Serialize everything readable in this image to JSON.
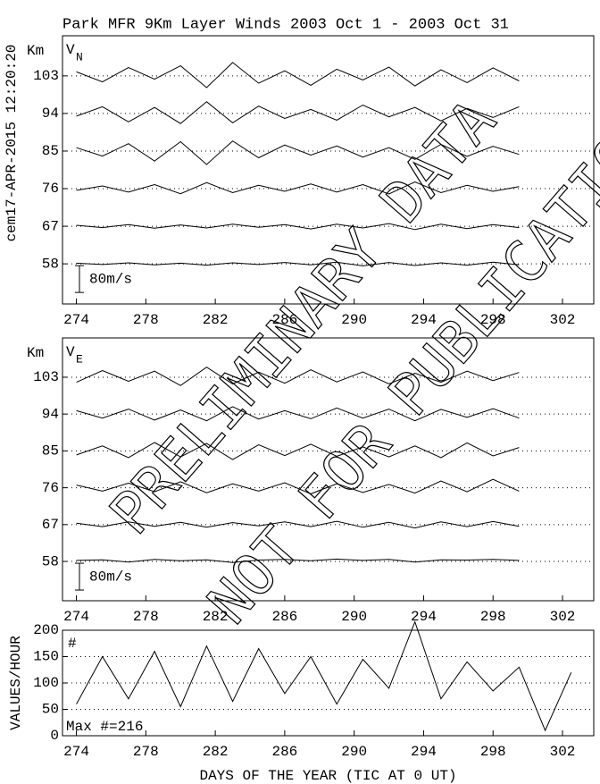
{
  "title": "Park MFR 9Km Layer Winds 2003 Oct  1 - 2003 Oct 31",
  "timestamp": "cem17-APR-2015 12:20:20",
  "watermark": [
    "PRELIMINARY DATA",
    "NOT FOR PUBLICATION"
  ],
  "chart_data": [
    {
      "type": "line",
      "component": "V",
      "subscript": "N",
      "ylabel": "Km",
      "xlim": [
        273.2,
        303.8
      ],
      "ylim": [
        48.4,
        112.6
      ],
      "xticks": [
        274,
        278,
        282,
        286,
        290,
        294,
        298,
        302
      ],
      "yticks": [
        58,
        67,
        76,
        85,
        94,
        103
      ],
      "grid": true,
      "scale_bar": {
        "value": 80,
        "label": "80m/s"
      },
      "x": [
        274,
        275.5,
        277,
        278.5,
        280,
        281.5,
        283,
        284.5,
        286,
        287.5,
        289,
        290.5,
        292,
        293.5,
        295,
        296.5,
        298,
        299.5,
        301,
        302.5
      ],
      "series": [
        {
          "height": 103,
          "color": "#000000",
          "values": [
            12,
            -18,
            25,
            -10,
            30,
            -35,
            40,
            -22,
            15,
            -28,
            20,
            -12,
            26,
            -30,
            18,
            -20,
            24,
            -15,
            null,
            10
          ]
        },
        {
          "height": 94,
          "color": "#000000",
          "values": [
            -8,
            20,
            -25,
            18,
            -30,
            35,
            -28,
            22,
            -15,
            12,
            -20,
            25,
            -10,
            18,
            -22,
            15,
            -12,
            20,
            null,
            -6
          ]
        },
        {
          "height": 85,
          "color": "#000000",
          "values": [
            10,
            -15,
            22,
            -30,
            28,
            -40,
            30,
            -20,
            18,
            -12,
            15,
            -18,
            10,
            -25,
            20,
            -16,
            14,
            -10,
            null,
            12
          ]
        },
        {
          "height": 76,
          "color": "#000000",
          "values": [
            -5,
            8,
            -10,
            12,
            -15,
            18,
            -12,
            10,
            -8,
            14,
            -10,
            12,
            -16,
            20,
            -12,
            10,
            -8,
            6,
            null,
            -10
          ]
        },
        {
          "height": 67,
          "color": "#000000",
          "values": [
            3,
            -4,
            5,
            -6,
            4,
            -5,
            6,
            -3,
            5,
            -8,
            6,
            -5,
            8,
            -10,
            6,
            -7,
            5,
            -4,
            null,
            9
          ]
        },
        {
          "height": 58,
          "color": "#000000",
          "values": [
            2,
            -2,
            3,
            -3,
            2,
            -4,
            3,
            -2,
            4,
            -3,
            5,
            -6,
            4,
            -5,
            3,
            -4,
            5,
            -3,
            null,
            7
          ]
        }
      ]
    },
    {
      "type": "line",
      "component": "V",
      "subscript": "E",
      "ylabel": "Km",
      "xlim": [
        273.2,
        303.8
      ],
      "ylim": [
        48.4,
        112.6
      ],
      "xticks": [
        274,
        278,
        282,
        286,
        290,
        294,
        298,
        302
      ],
      "yticks": [
        58,
        67,
        76,
        85,
        94,
        103
      ],
      "grid": true,
      "scale_bar": {
        "value": 80,
        "label": "80m/s"
      },
      "x": [
        274,
        275.5,
        277,
        278.5,
        280,
        281.5,
        283,
        284.5,
        286,
        287.5,
        289,
        290.5,
        292,
        293.5,
        295,
        296.5,
        298,
        299.5,
        301,
        302.5
      ],
      "series": [
        {
          "height": 103,
          "color": "#000000",
          "values": [
            -15,
            20,
            -12,
            18,
            -25,
            30,
            -20,
            15,
            -18,
            22,
            -14,
            16,
            -20,
            12,
            -15,
            18,
            -10,
            14,
            null,
            -20
          ]
        },
        {
          "height": 94,
          "color": "#000000",
          "values": [
            10,
            -12,
            15,
            -18,
            12,
            -20,
            22,
            -15,
            10,
            -14,
            18,
            -12,
            15,
            -20,
            14,
            -10,
            16,
            -12,
            null,
            12
          ]
        },
        {
          "height": 85,
          "color": "#000000",
          "values": [
            -12,
            15,
            -20,
            25,
            -18,
            22,
            -26,
            18,
            -14,
            20,
            -16,
            12,
            -18,
            15,
            -20,
            24,
            -15,
            10,
            null,
            -14
          ]
        },
        {
          "height": 76,
          "color": "#000000",
          "values": [
            8,
            -10,
            14,
            -12,
            18,
            -15,
            12,
            -10,
            15,
            -18,
            12,
            -14,
            10,
            -16,
            20,
            -12,
            25,
            -10,
            null,
            15
          ]
        },
        {
          "height": 67,
          "color": "#000000",
          "values": [
            4,
            -6,
            8,
            -5,
            7,
            -8,
            6,
            -4,
            8,
            -6,
            10,
            -8,
            7,
            -10,
            8,
            -6,
            9,
            -5,
            null,
            -12
          ]
        },
        {
          "height": 58,
          "color": "#000000",
          "values": [
            3,
            5,
            -2,
            6,
            2,
            5,
            -3,
            4,
            6,
            2,
            7,
            3,
            6,
            -2,
            5,
            4,
            6,
            3,
            null,
            10
          ]
        }
      ]
    },
    {
      "type": "line",
      "ylabel": "VALUES/HOUR",
      "xlabel": "DAYS OF THE YEAR (TIC AT 0 UT)",
      "symbol": "#",
      "annotation": "Max #=216",
      "xlim": [
        273.2,
        303.8
      ],
      "ylim": [
        0,
        200
      ],
      "xticks": [
        274,
        278,
        282,
        286,
        290,
        294,
        298,
        302
      ],
      "yticks": [
        0,
        50,
        100,
        150,
        200
      ],
      "grid": true,
      "x": [
        274,
        275.5,
        277,
        278.5,
        280,
        281.5,
        283,
        284.5,
        286,
        287.5,
        289,
        290.5,
        292,
        293.5,
        295,
        296.5,
        298,
        299.5,
        301,
        302.5
      ],
      "color": "#000000",
      "values": [
        60,
        150,
        70,
        160,
        55,
        170,
        65,
        165,
        80,
        150,
        60,
        145,
        90,
        216,
        70,
        140,
        85,
        130,
        10,
        120
      ]
    }
  ]
}
